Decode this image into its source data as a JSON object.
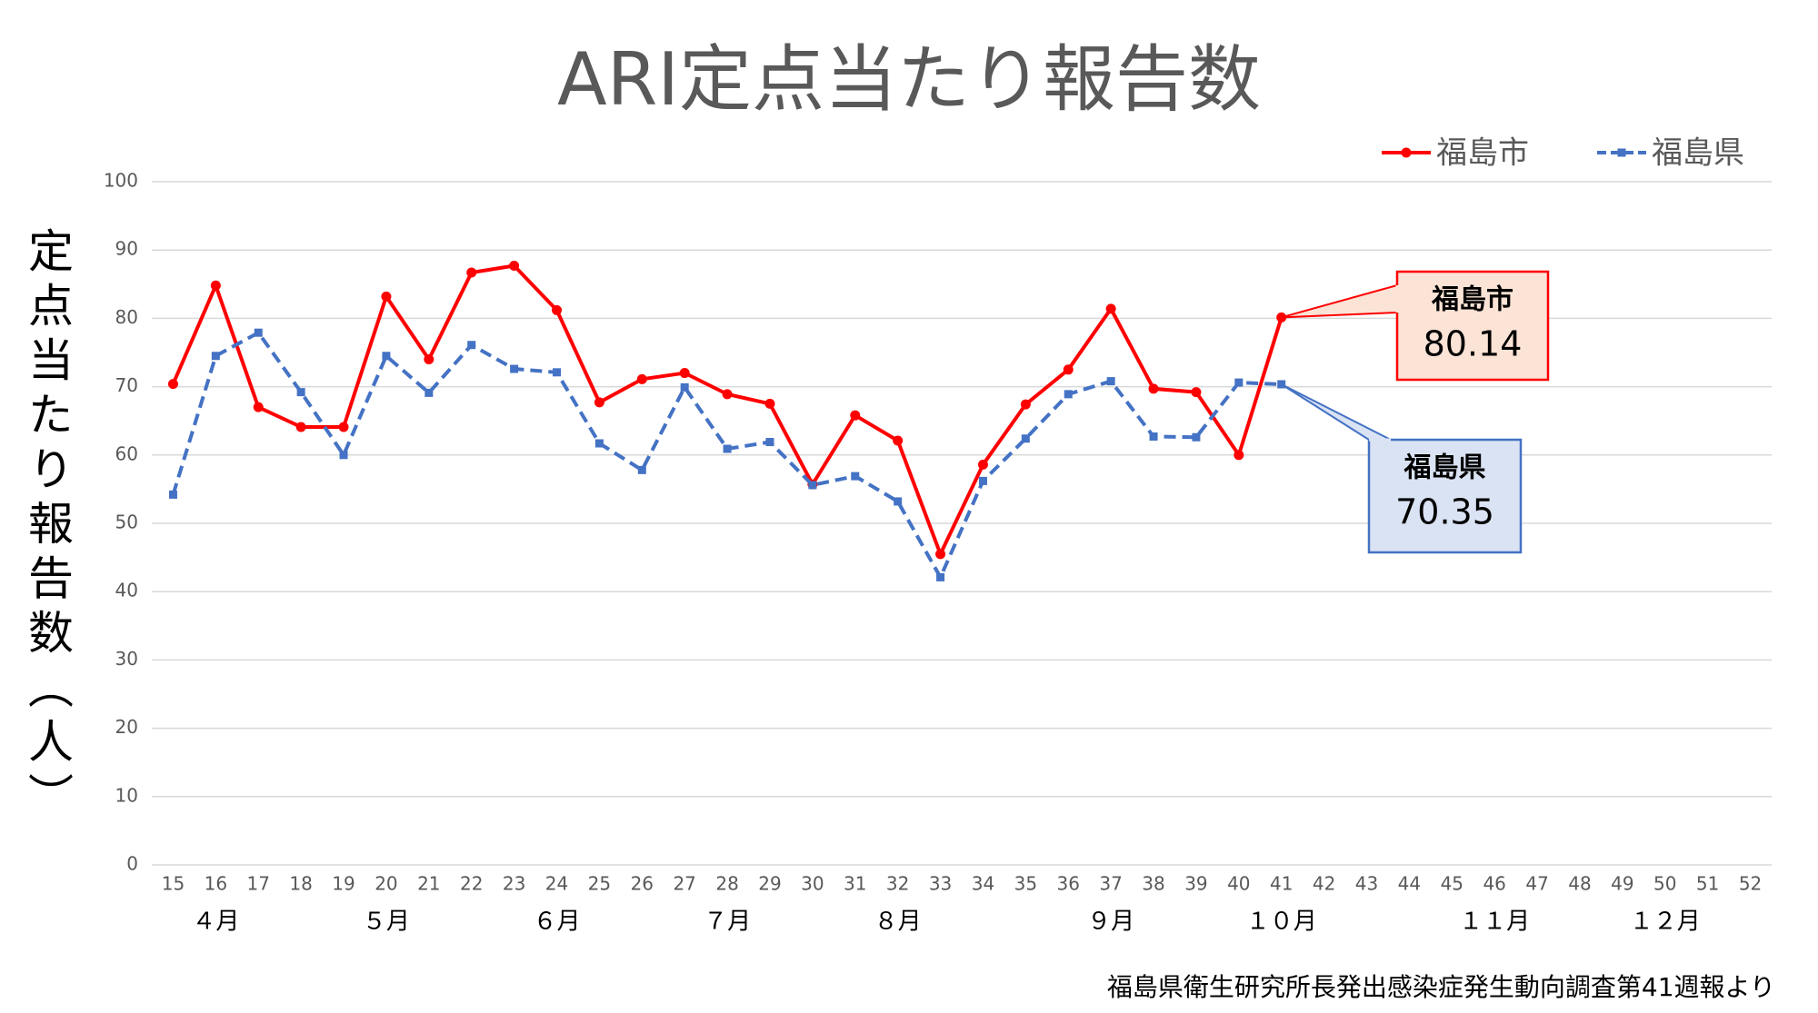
{
  "chart_data": {
    "type": "line",
    "title": "ARI定点当たり報告数",
    "y_label": "定点当たり報告数（人）",
    "source": "福島県衛生研究所長発出感染症発生動向調査第41週報より",
    "categories": [
      "15",
      "16",
      "17",
      "18",
      "19",
      "20",
      "21",
      "22",
      "23",
      "24",
      "25",
      "26",
      "27",
      "28",
      "29",
      "30",
      "31",
      "32",
      "33",
      "34",
      "35",
      "36",
      "37",
      "38",
      "39",
      "40",
      "41",
      "42",
      "43",
      "44",
      "45",
      "46",
      "47",
      "48",
      "49",
      "50",
      "51",
      "52"
    ],
    "month_labels": [
      null,
      "４月",
      null,
      null,
      null,
      "５月",
      null,
      null,
      null,
      "６月",
      null,
      null,
      null,
      "７月",
      null,
      null,
      null,
      "８月",
      null,
      null,
      null,
      null,
      "９月",
      null,
      null,
      null,
      "１０月",
      null,
      null,
      null,
      null,
      "１１月",
      null,
      null,
      null,
      "１２月",
      null,
      null
    ],
    "series": [
      {
        "name": "福島市",
        "color": "#ff0000",
        "dashed": false,
        "marker": "circle",
        "values": [
          70.4,
          84.8,
          67.0,
          64.1,
          64.1,
          83.2,
          74.0,
          86.7,
          87.7,
          81.2,
          67.7,
          71.1,
          72.0,
          68.9,
          67.5,
          55.7,
          65.8,
          62.1,
          45.5,
          58.6,
          67.4,
          72.5,
          81.4,
          69.7,
          69.2,
          60.0,
          80.14,
          null,
          null,
          null,
          null,
          null,
          null,
          null,
          null,
          null,
          null,
          null
        ]
      },
      {
        "name": "福島県",
        "color": "#4472c4",
        "dashed": true,
        "marker": "square",
        "values": [
          54.2,
          74.5,
          77.9,
          69.2,
          60.0,
          74.5,
          69.1,
          76.1,
          72.6,
          72.1,
          61.7,
          57.8,
          69.9,
          60.9,
          61.9,
          55.6,
          56.9,
          53.2,
          42.1,
          56.2,
          62.4,
          68.9,
          70.8,
          62.7,
          62.6,
          70.6,
          70.35,
          null,
          null,
          null,
          null,
          null,
          null,
          null,
          null,
          null,
          null,
          null
        ]
      }
    ],
    "ylim": [
      0,
      100
    ],
    "yticks": [
      0,
      10,
      20,
      30,
      40,
      50,
      60,
      70,
      80,
      90,
      100
    ],
    "grid": true,
    "legend": "top-right"
  }
}
